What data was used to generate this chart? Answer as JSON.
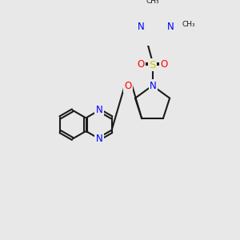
{
  "bg_color": "#e8e8e8",
  "bond_color": "#1a1a1a",
  "bond_width": 1.5,
  "atom_colors": {
    "N": "#0000ff",
    "O": "#ff0000",
    "S": "#cccc00",
    "C": "#1a1a1a"
  },
  "font_size": 8.5,
  "font_size_methyl": 7.5
}
